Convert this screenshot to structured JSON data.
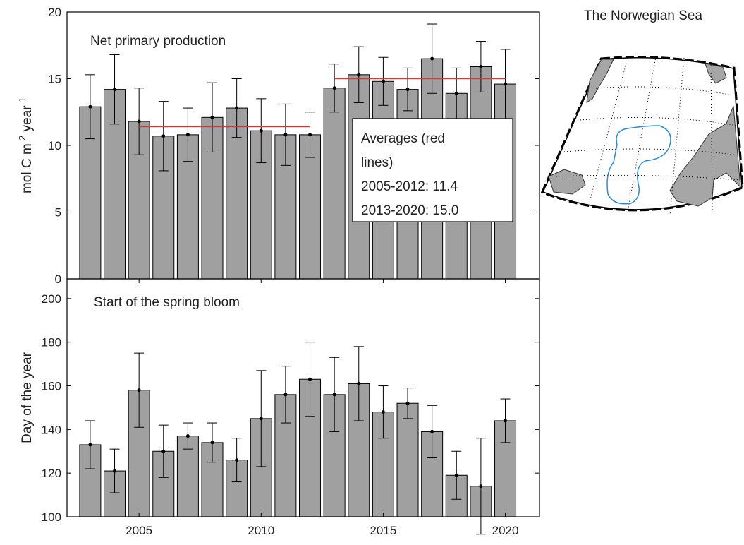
{
  "chart_data": [
    {
      "type": "bar",
      "annotation": "Net primary production",
      "ylabel_parts": [
        "mol C m",
        "-2",
        " year",
        "-1"
      ],
      "x": [
        2003,
        2004,
        2005,
        2006,
        2007,
        2008,
        2009,
        2010,
        2011,
        2012,
        2013,
        2014,
        2015,
        2016,
        2017,
        2018,
        2019,
        2020
      ],
      "values": [
        12.9,
        14.2,
        11.8,
        10.7,
        10.8,
        12.1,
        12.8,
        11.1,
        10.8,
        10.8,
        14.3,
        15.3,
        14.8,
        14.2,
        16.5,
        13.9,
        15.9,
        14.6
      ],
      "errors": [
        2.4,
        2.6,
        2.5,
        2.6,
        2.0,
        2.6,
        2.2,
        2.4,
        2.3,
        1.7,
        1.8,
        2.1,
        1.8,
        1.6,
        2.6,
        1.9,
        1.9,
        2.6
      ],
      "color": "#a0a0a0",
      "average_lines": [
        {
          "start": 2005,
          "end": 2012,
          "value": 11.4
        },
        {
          "start": 2013,
          "end": 2020,
          "value": 15.0
        }
      ],
      "average_color": "#e8302c",
      "legend_lines": [
        "Averages (red",
        "lines)",
        "2005-2012: 11.4",
        "2013-2020: 15.0"
      ],
      "xlim": [
        2002.05,
        2021.4
      ],
      "ylim": [
        0,
        20
      ],
      "yticks": [
        0,
        5,
        10,
        15,
        20
      ]
    },
    {
      "type": "bar",
      "annotation": "Start of the spring bloom",
      "ylabel": "Day of the year",
      "x": [
        2003,
        2004,
        2005,
        2006,
        2007,
        2008,
        2009,
        2010,
        2011,
        2012,
        2013,
        2014,
        2015,
        2016,
        2017,
        2018,
        2019,
        2020
      ],
      "values": [
        133,
        121,
        158,
        130,
        137,
        134,
        126,
        145,
        156,
        163,
        156,
        161,
        148,
        152,
        139,
        119,
        114,
        144
      ],
      "errors": [
        11,
        10,
        17,
        12,
        6,
        9,
        10,
        22,
        13,
        17,
        17,
        17,
        12,
        7,
        12,
        11,
        22,
        10
      ],
      "color": "#a0a0a0",
      "xlim": [
        2002.05,
        2021.4
      ],
      "xticks": [
        2005,
        2010,
        2015,
        2020
      ],
      "ylim": [
        100,
        209
      ],
      "yticks": [
        100,
        120,
        140,
        160,
        180,
        200
      ]
    }
  ],
  "map": {
    "title": "The Norwegian Sea"
  }
}
